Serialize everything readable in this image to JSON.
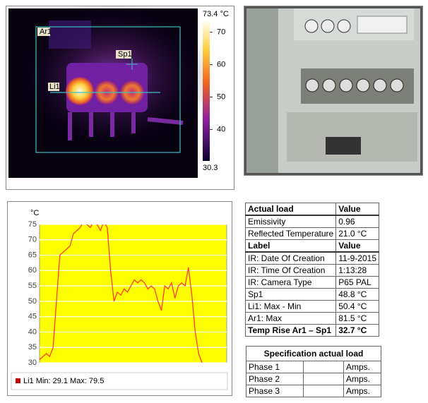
{
  "thermal_image": {
    "labels": [
      "Ar1",
      "Sp1",
      "Li1"
    ],
    "scale": {
      "max": {
        "value": 73.4,
        "label": "73.4 °C"
      },
      "min": {
        "value": 30.3,
        "label": "30.3"
      },
      "ticks": [
        70,
        60,
        50,
        40
      ]
    }
  },
  "chart_data": {
    "type": "line",
    "y_label": "°C",
    "color": "#ff3c1e",
    "background": "#ffff00",
    "ylim": [
      30,
      75
    ],
    "yticks": [
      30,
      35,
      40,
      45,
      50,
      55,
      60,
      65,
      70,
      75
    ],
    "grid": true,
    "legend": "Li1 Min: 29.1 Max: 79.5",
    "values": [
      31,
      32,
      33,
      32,
      35,
      50,
      65,
      66,
      67,
      68,
      72,
      73,
      74,
      76,
      75,
      74,
      76,
      75,
      73,
      76,
      74,
      60,
      50,
      53,
      52,
      54,
      53,
      55,
      57,
      56,
      57,
      56,
      54,
      55,
      54,
      50,
      47,
      55,
      54,
      56,
      51,
      55,
      56,
      55,
      61,
      52,
      40,
      33,
      30
    ]
  },
  "table": {
    "rows": [
      [
        "Actual load",
        "Value"
      ],
      [
        "Emissivity",
        "0.96"
      ],
      [
        "Reflected Temperature",
        "21.0 °C"
      ],
      [
        "Label",
        "Value"
      ],
      [
        "IR: Date Of Creation",
        "11-9-2015"
      ],
      [
        "IR: Time Of Creation",
        "1:13:28"
      ],
      [
        "IR: Camera Type",
        "P65 PAL"
      ],
      [
        "Sp1",
        "48.8 °C"
      ],
      [
        "Li1: Max - Min",
        "50.4 °C"
      ],
      [
        "Ar1: Max",
        "81.5 °C"
      ],
      [
        "Temp Rise Ar1 – Sp1",
        "32.7 °C"
      ]
    ]
  },
  "spec_table": {
    "title": "Specification actual load",
    "rows": [
      {
        "phase": "Phase 1",
        "unit": "Amps."
      },
      {
        "phase": "Phase 2",
        "unit": "Amps."
      },
      {
        "phase": "Phase 3",
        "unit": "Amps."
      }
    ]
  }
}
